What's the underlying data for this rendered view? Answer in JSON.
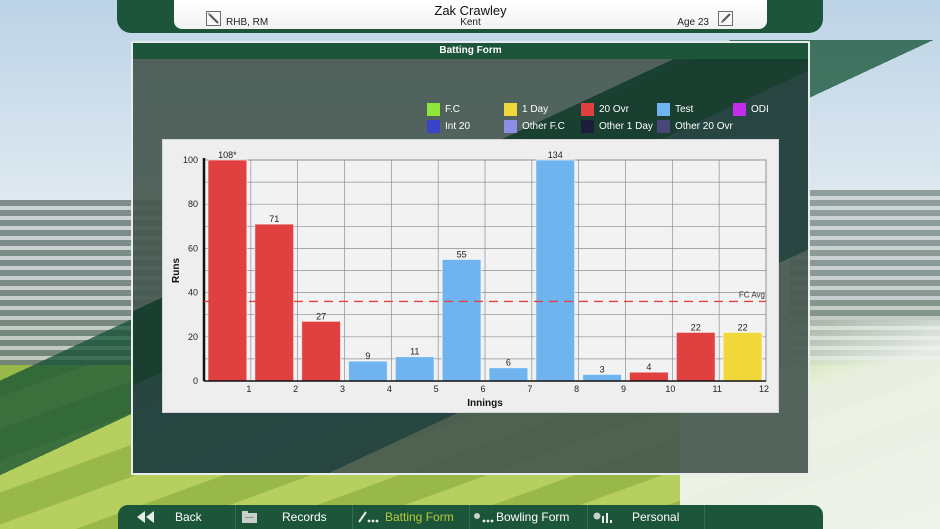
{
  "header": {
    "player_name": "Zak Crawley",
    "club": "Kent",
    "style": "RHB, RM",
    "age": "Age 23"
  },
  "panel": {
    "title": "Batting Form"
  },
  "legend": {
    "items": [
      {
        "label": "F.C",
        "color": "#8fe63a"
      },
      {
        "label": "1 Day",
        "color": "#f2d73a"
      },
      {
        "label": "20 Ovr",
        "color": "#e04040"
      },
      {
        "label": "Test",
        "color": "#6fb4ee"
      },
      {
        "label": "ODI",
        "color": "#c42ee8"
      },
      {
        "label": "Int 20",
        "color": "#3a44c8"
      },
      {
        "label": "Other F.C",
        "color": "#8a8ee6"
      },
      {
        "label": "Other 1 Day",
        "color": "#1d1f3a"
      },
      {
        "label": "Other 20 Ovr",
        "color": "#48467a"
      }
    ]
  },
  "chart_data": {
    "type": "bar",
    "title": "Batting Form",
    "xlabel": "Innings",
    "ylabel": "Runs",
    "ylim": [
      0,
      100
    ],
    "yticks": [
      0,
      20,
      40,
      60,
      80,
      100
    ],
    "categories": [
      "1",
      "2",
      "3",
      "4",
      "5",
      "6",
      "7",
      "8",
      "9",
      "10",
      "11",
      "12"
    ],
    "values": [
      108,
      71,
      27,
      9,
      11,
      55,
      6,
      134,
      3,
      4,
      22,
      22
    ],
    "labels": [
      "108*",
      "71",
      "27",
      "9",
      "11",
      "55",
      "6",
      "134",
      "3",
      "4",
      "22",
      "22"
    ],
    "formats": [
      "20 Ovr",
      "20 Ovr",
      "20 Ovr",
      "Test",
      "Test",
      "Test",
      "Test",
      "Test",
      "Test",
      "20 Ovr",
      "20 Ovr",
      "1 Day"
    ],
    "reference_line": {
      "label": "FC Avg",
      "value": 36,
      "color": "#e04040",
      "style": "dashed"
    },
    "grid": true
  },
  "nav": {
    "items": [
      {
        "label": "Back",
        "icon": "rewind-icon",
        "active": false
      },
      {
        "label": "Records",
        "icon": "folder-icon",
        "active": false
      },
      {
        "label": "Batting Form",
        "icon": "batting-icon",
        "active": true
      },
      {
        "label": "Bowling Form",
        "icon": "bowling-icon",
        "active": false
      },
      {
        "label": "Personal",
        "icon": "stats-icon",
        "active": false
      }
    ]
  }
}
